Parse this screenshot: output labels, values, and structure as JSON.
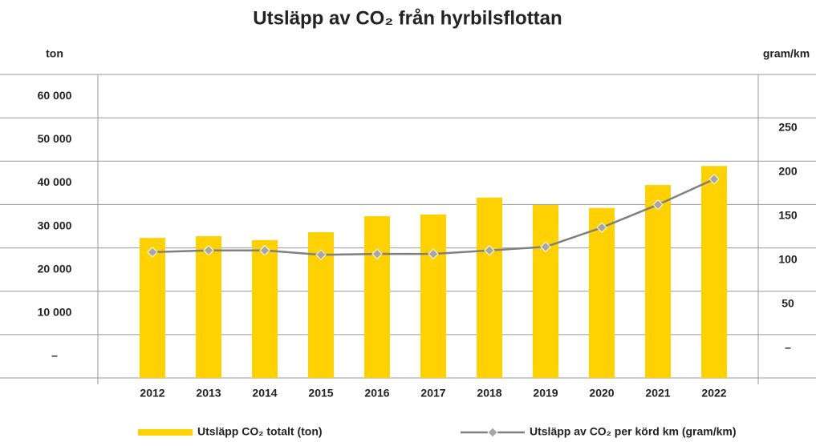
{
  "chart_data": {
    "type": "bar_line",
    "title": "Utsläpp av CO₂ från hyrbilsflottan",
    "y_label": "ton",
    "y2_label": "gram/km",
    "categories": [
      "2012",
      "2013",
      "2014",
      "2015",
      "2016",
      "2017",
      "2018",
      "2019",
      "2020",
      "2021",
      "2022"
    ],
    "series": [
      {
        "name": "Utsläpp CO₂ totalt (ton)",
        "type": "bar",
        "color": "#ffd100",
        "values": [
          32300,
          32700,
          31800,
          33600,
          37300,
          37700,
          41600,
          39900,
          39200,
          44500,
          48900
        ]
      },
      {
        "name": "Utsläpp av CO₂ per körd km (gram/km)",
        "type": "line",
        "axis": "y2",
        "color": "#7f7f7f",
        "marker_color": "#a6a6a6",
        "values": [
          109,
          111,
          111,
          106,
          107,
          107,
          111,
          115,
          137,
          163,
          192
        ]
      }
    ],
    "ylim": [
      0,
      70000
    ],
    "yticks": [
      {
        "value": 0,
        "label": "–"
      },
      {
        "value": 10000,
        "label": "10 000"
      },
      {
        "value": 20000,
        "label": "20 000"
      },
      {
        "value": 30000,
        "label": "30 000"
      },
      {
        "value": 40000,
        "label": "40 000"
      },
      {
        "value": 50000,
        "label": "50 000"
      },
      {
        "value": 60000,
        "label": "60 000"
      }
    ],
    "y2lim": [
      -34,
      311
    ],
    "y2ticks": [
      {
        "value": 0,
        "label": "–"
      },
      50,
      100,
      150,
      200,
      250
    ],
    "grid": true
  }
}
